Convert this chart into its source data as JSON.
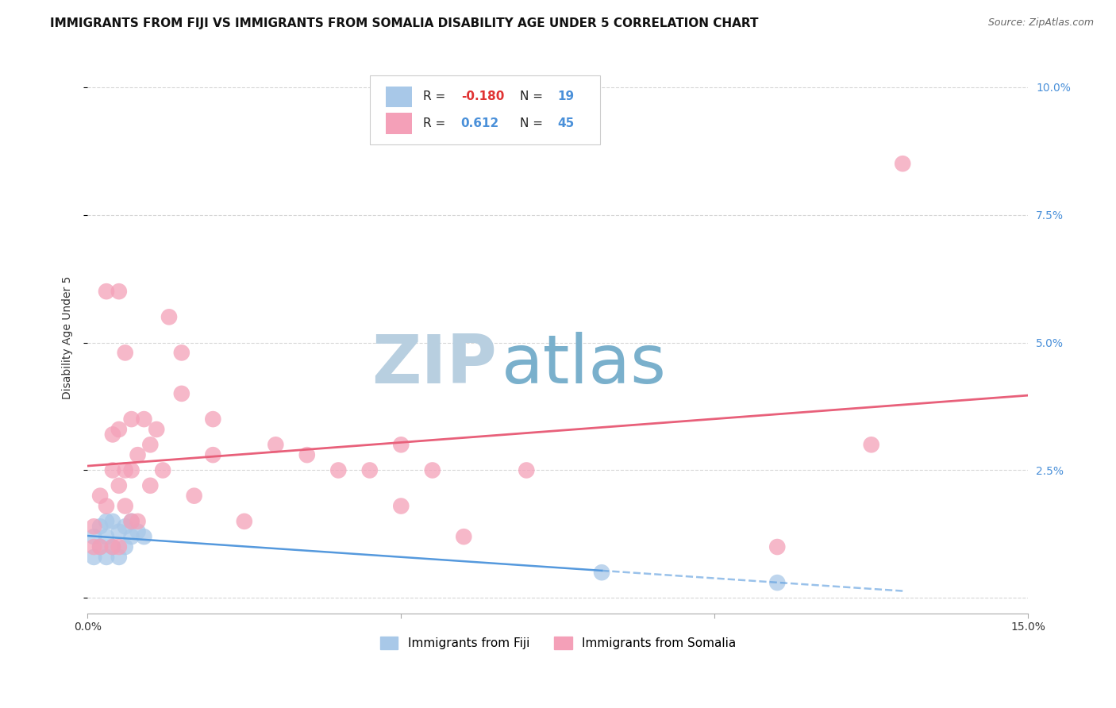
{
  "title": "IMMIGRANTS FROM FIJI VS IMMIGRANTS FROM SOMALIA DISABILITY AGE UNDER 5 CORRELATION CHART",
  "source": "Source: ZipAtlas.com",
  "ylabel": "Disability Age Under 5",
  "xlim": [
    0.0,
    0.15
  ],
  "ylim": [
    -0.003,
    0.105
  ],
  "xticks": [
    0.0,
    0.05,
    0.1,
    0.15
  ],
  "yticks": [
    0.0,
    0.025,
    0.05,
    0.075,
    0.1
  ],
  "ytick_labels_right": [
    "",
    "2.5%",
    "5.0%",
    "7.5%",
    "10.0%"
  ],
  "xtick_labels": [
    "0.0%",
    "",
    "",
    "15.0%"
  ],
  "fiji_color": "#a8c8e8",
  "somalia_color": "#f4a0b8",
  "fiji_line_color": "#5599dd",
  "somalia_line_color": "#e8607a",
  "fiji_scatter_x": [
    0.001,
    0.001,
    0.002,
    0.002,
    0.003,
    0.003,
    0.003,
    0.004,
    0.004,
    0.005,
    0.005,
    0.006,
    0.006,
    0.007,
    0.007,
    0.008,
    0.009,
    0.082,
    0.11
  ],
  "fiji_scatter_y": [
    0.008,
    0.012,
    0.01,
    0.014,
    0.008,
    0.012,
    0.015,
    0.01,
    0.015,
    0.008,
    0.013,
    0.01,
    0.014,
    0.012,
    0.015,
    0.013,
    0.012,
    0.005,
    0.003
  ],
  "somalia_scatter_x": [
    0.001,
    0.001,
    0.002,
    0.002,
    0.003,
    0.003,
    0.004,
    0.004,
    0.004,
    0.005,
    0.005,
    0.005,
    0.005,
    0.006,
    0.006,
    0.006,
    0.007,
    0.007,
    0.007,
    0.008,
    0.008,
    0.009,
    0.01,
    0.01,
    0.011,
    0.012,
    0.013,
    0.015,
    0.015,
    0.017,
    0.02,
    0.02,
    0.025,
    0.03,
    0.035,
    0.04,
    0.045,
    0.05,
    0.05,
    0.055,
    0.06,
    0.07,
    0.11,
    0.125,
    0.13
  ],
  "somalia_scatter_y": [
    0.01,
    0.014,
    0.01,
    0.02,
    0.018,
    0.06,
    0.025,
    0.032,
    0.01,
    0.01,
    0.022,
    0.033,
    0.06,
    0.018,
    0.025,
    0.048,
    0.025,
    0.035,
    0.015,
    0.015,
    0.028,
    0.035,
    0.022,
    0.03,
    0.033,
    0.025,
    0.055,
    0.04,
    0.048,
    0.02,
    0.028,
    0.035,
    0.015,
    0.03,
    0.028,
    0.025,
    0.025,
    0.018,
    0.03,
    0.025,
    0.012,
    0.025,
    0.01,
    0.03,
    0.085
  ],
  "background_color": "#ffffff",
  "grid_color": "#cccccc",
  "watermark_zip": "ZIP",
  "watermark_atlas": "atlas",
  "watermark_color_zip": "#b8cfe0",
  "watermark_color_atlas": "#7ab0cc",
  "title_fontsize": 11,
  "axis_label_fontsize": 10,
  "tick_fontsize": 10,
  "source_fontsize": 9
}
